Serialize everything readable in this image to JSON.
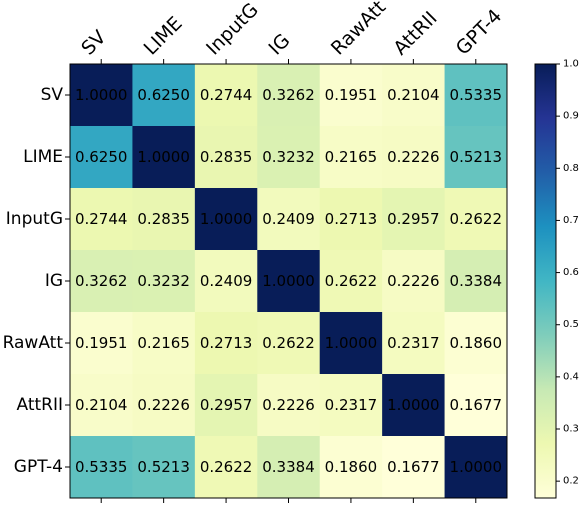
{
  "chart_data": {
    "type": "heatmap",
    "title": "",
    "xlabel": "",
    "ylabel": "",
    "labels": [
      "SV",
      "LIME",
      "InputG",
      "IG",
      "RawAtt",
      "AttRII",
      "GPT-4"
    ],
    "matrix": [
      [
        1.0,
        0.625,
        0.2744,
        0.3262,
        0.1951,
        0.2104,
        0.5335
      ],
      [
        0.625,
        1.0,
        0.2835,
        0.3232,
        0.2165,
        0.2226,
        0.5213
      ],
      [
        0.2744,
        0.2835,
        1.0,
        0.2409,
        0.2713,
        0.2957,
        0.2622
      ],
      [
        0.3262,
        0.3232,
        0.2409,
        1.0,
        0.2622,
        0.2226,
        0.3384
      ],
      [
        0.1951,
        0.2165,
        0.2713,
        0.2622,
        1.0,
        0.2317,
        0.186
      ],
      [
        0.2104,
        0.2226,
        0.2957,
        0.2226,
        0.2317,
        1.0,
        0.1677
      ],
      [
        0.5335,
        0.5213,
        0.2622,
        0.3384,
        0.186,
        0.1677,
        1.0
      ]
    ],
    "cell_labels": [
      [
        "1.0000",
        "0.6250",
        "0.2744",
        "0.3262",
        "0.1951",
        "0.2104",
        "0.5335"
      ],
      [
        "0.6250",
        "1.0000",
        "0.2835",
        "0.3232",
        "0.2165",
        "0.2226",
        "0.5213"
      ],
      [
        "0.2744",
        "0.2835",
        "1.0000",
        "0.2409",
        "0.2713",
        "0.2957",
        "0.2622"
      ],
      [
        "0.3262",
        "0.3232",
        "0.2409",
        "1.0000",
        "0.2622",
        "0.2226",
        "0.3384"
      ],
      [
        "0.1951",
        "0.2165",
        "0.2713",
        "0.2622",
        "1.0000",
        "0.2317",
        "0.1860"
      ],
      [
        "0.2104",
        "0.2226",
        "0.2957",
        "0.2226",
        "0.2317",
        "1.0000",
        "0.1677"
      ],
      [
        "0.5335",
        "0.5213",
        "0.2622",
        "0.3384",
        "0.1860",
        "0.1677",
        "1.0000"
      ]
    ],
    "value_range": [
      0.1677,
      1.0
    ],
    "colormap": "YlGnBu",
    "colorbar": {
      "ticks": [
        "0.2",
        "0.3",
        "0.4",
        "0.5",
        "0.6",
        "0.7",
        "0.8",
        "0.9",
        "1.0"
      ],
      "tick_values": [
        0.2,
        0.3,
        0.4,
        0.5,
        0.6,
        0.7,
        0.8,
        0.9,
        1.0
      ]
    },
    "x_tick_position": "top",
    "grid": false,
    "legend": "none"
  }
}
